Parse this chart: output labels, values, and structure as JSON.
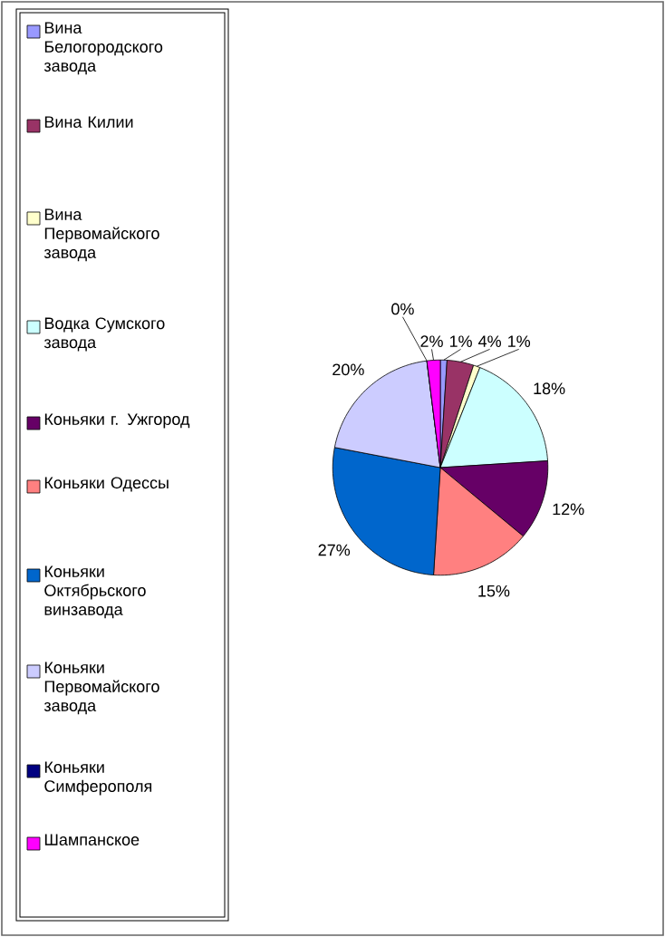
{
  "chart_data": {
    "type": "pie",
    "categories": [
      "Вина Белогородского завода",
      "Вина Килии",
      "Вина Первомайского завода",
      "Водка Сумского завода",
      "Коньяки г. Ужгород",
      "Коньяки Одессы",
      "Коньяки Октябрьского винзавода",
      "Коньяки Первомайского завода",
      "Коньяки Симферополя",
      "Шампанское"
    ],
    "values": [
      1,
      4,
      1,
      18,
      12,
      15,
      27,
      20,
      0,
      2
    ],
    "value_labels": [
      "1%",
      "4%",
      "1%",
      "18%",
      "12%",
      "15%",
      "27%",
      "20%",
      "0%",
      "2%"
    ],
    "colors": [
      "#9999ff",
      "#993366",
      "#ffffcc",
      "#ccffff",
      "#660066",
      "#ff8080",
      "#0066cc",
      "#ccccff",
      "#000080",
      "#ff00ff"
    ],
    "legend": "left"
  }
}
